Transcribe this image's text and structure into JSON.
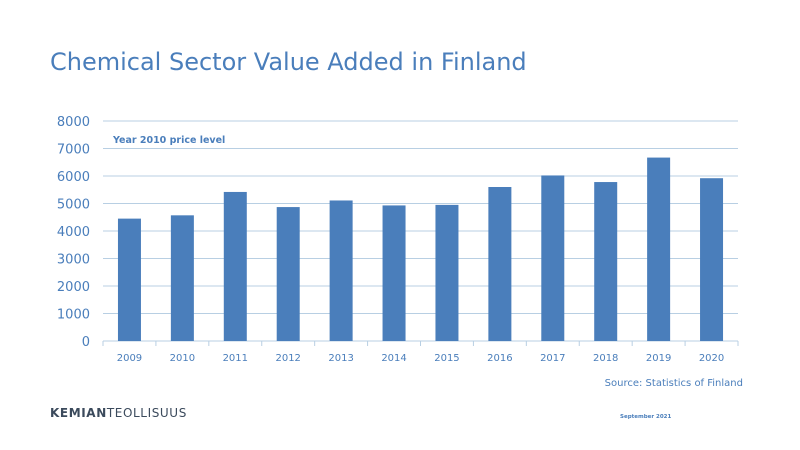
{
  "page": {
    "title": "Chemical Sector Value Added in Finland",
    "source": "Source: Statistics of Finland",
    "logo_part1": "KEMIAN",
    "logo_part2": "TEOLLISUUS",
    "date": "September 2021"
  },
  "chart_data": {
    "type": "bar",
    "title": "",
    "annotation": "Year 2010 price level",
    "xlabel": "",
    "ylabel": "",
    "categories": [
      "2009",
      "2010",
      "2011",
      "2012",
      "2013",
      "2014",
      "2015",
      "2016",
      "2017",
      "2018",
      "2019",
      "2020"
    ],
    "values": [
      4450,
      4570,
      5420,
      4870,
      5110,
      4930,
      4950,
      5600,
      6020,
      5780,
      6670,
      5920
    ],
    "ylim": [
      0,
      8000
    ],
    "yticks": [
      0,
      1000,
      2000,
      3000,
      4000,
      5000,
      6000,
      7000,
      8000
    ],
    "grid": true,
    "legend": "none",
    "bar_color": "#4a7ebb",
    "grid_color": "#b8cfe3",
    "text_color": "#4a7ebb"
  }
}
